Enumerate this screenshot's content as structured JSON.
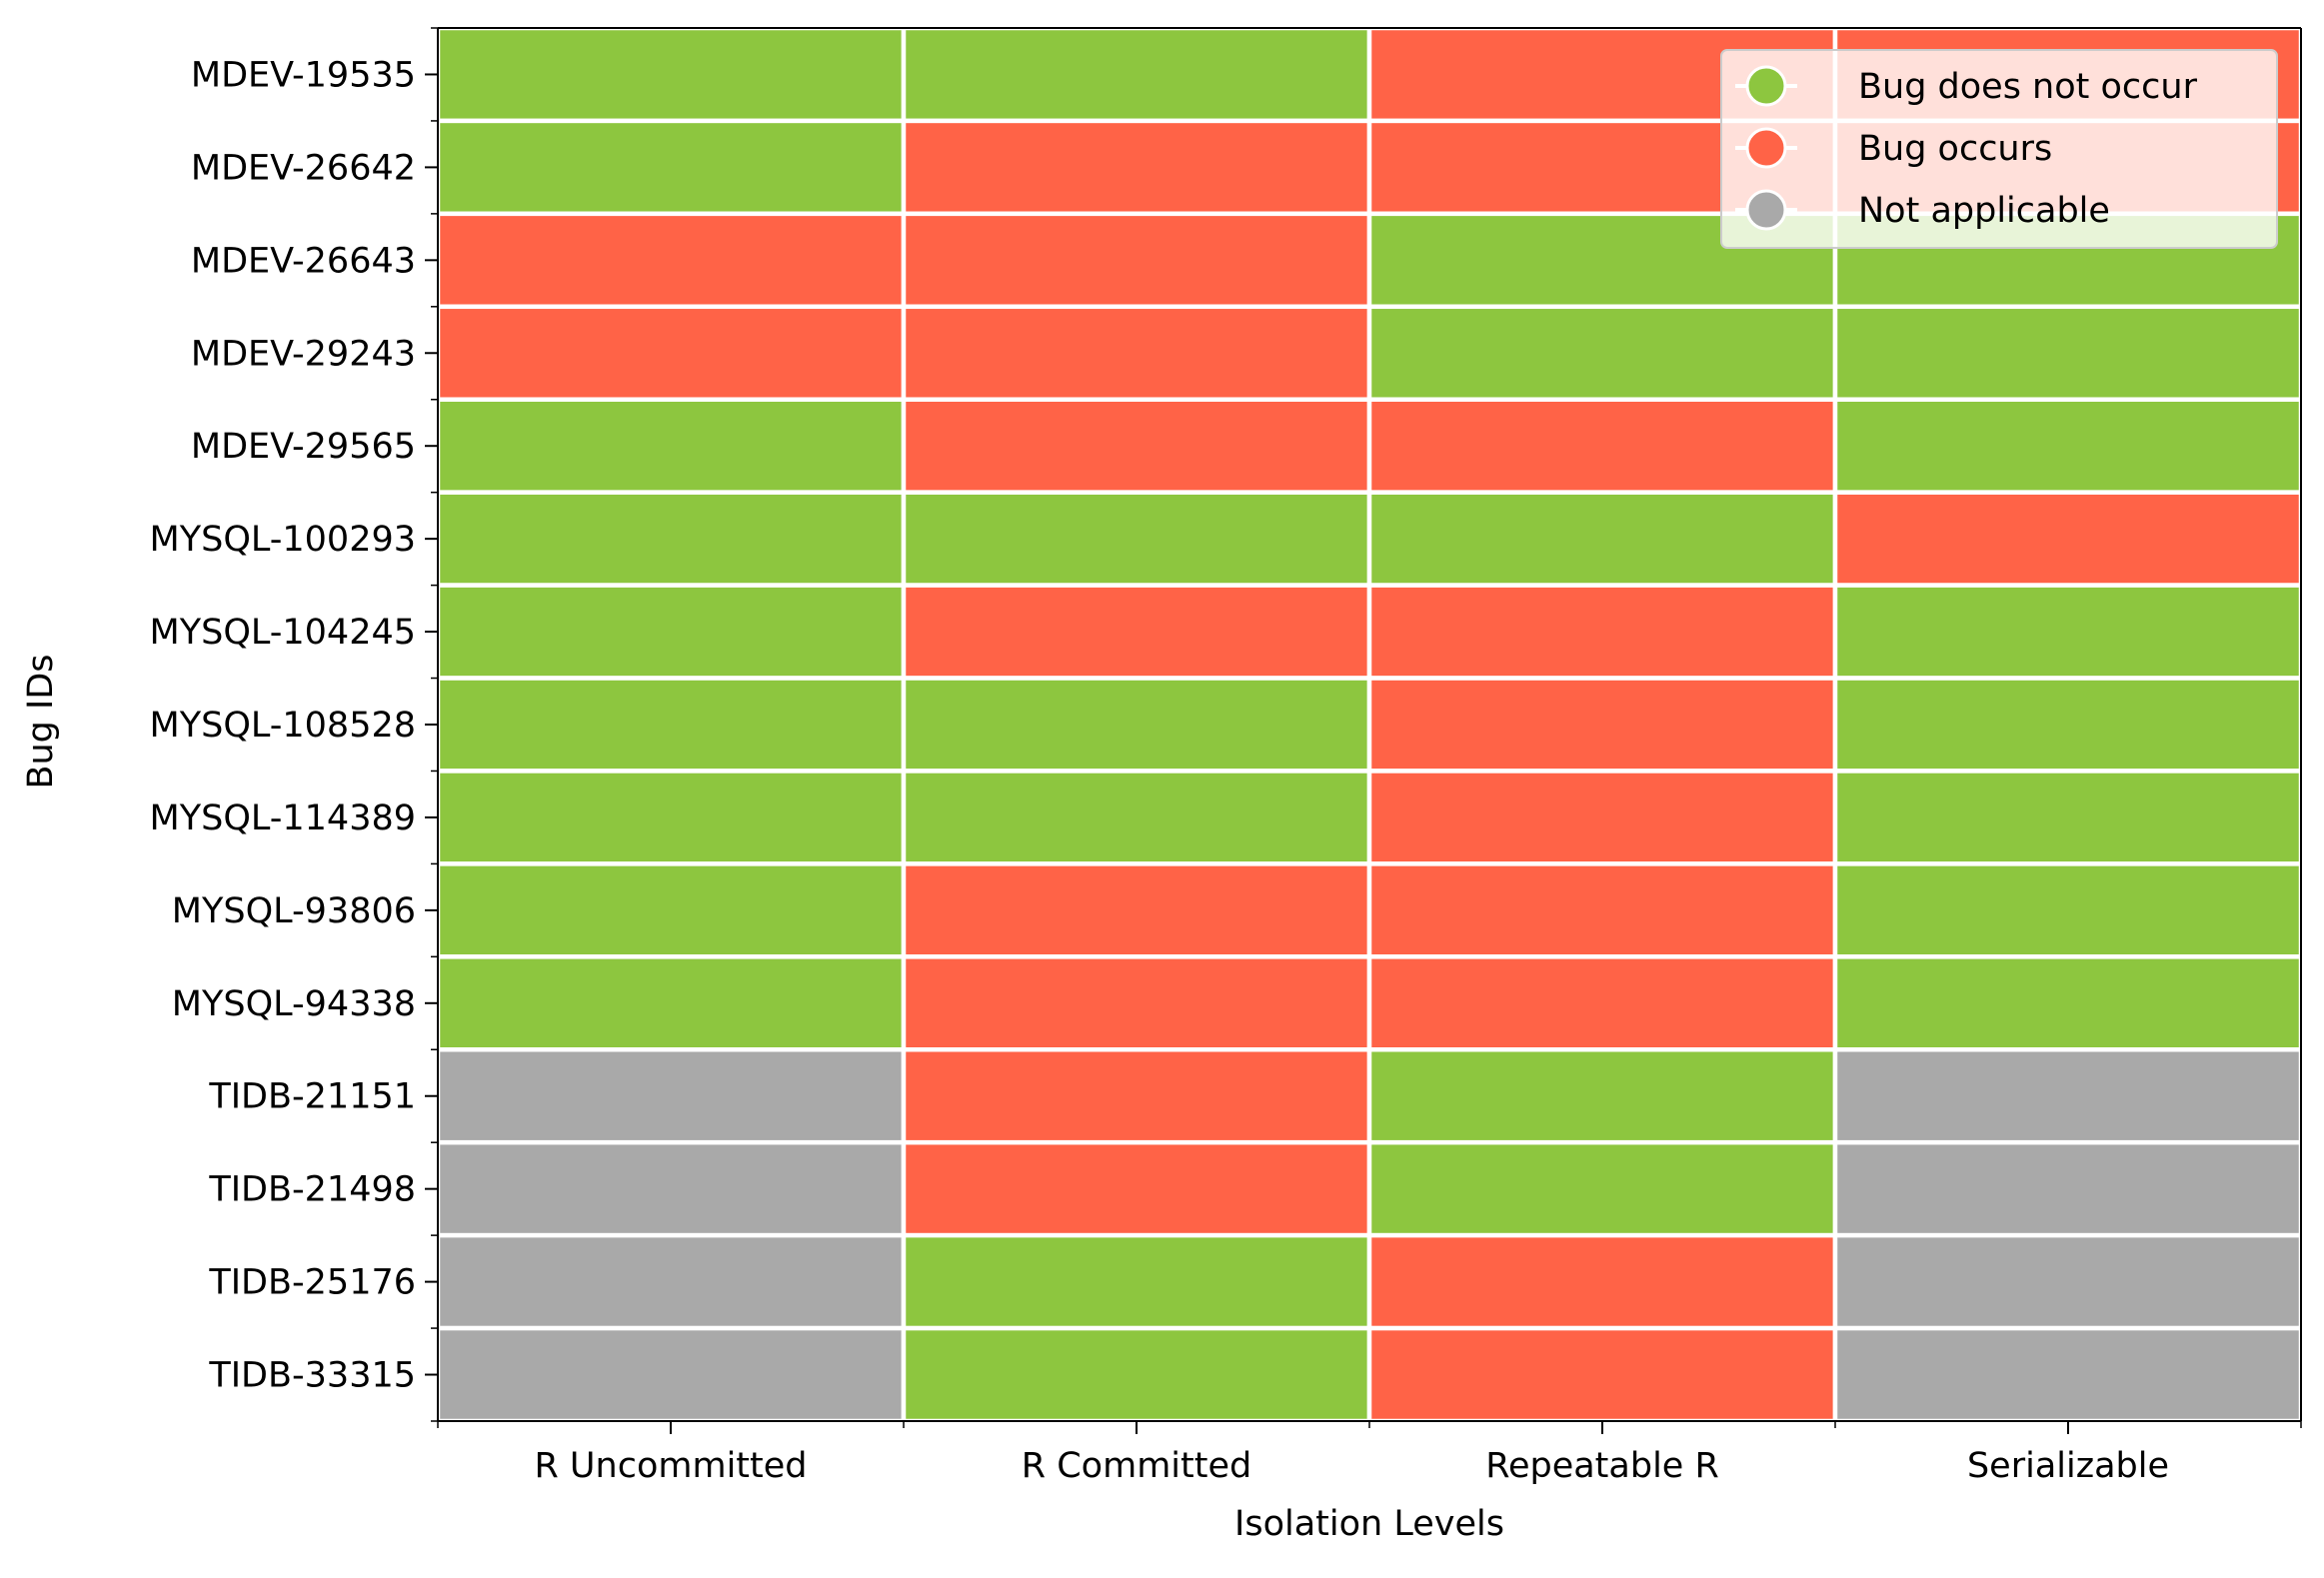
{
  "chart_data": {
    "type": "heatmap",
    "title": "",
    "xlabel": "Isolation Levels",
    "ylabel": "Bug IDs",
    "x_categories": [
      "R Uncommitted",
      "R Committed",
      "Repeatable R",
      "Serializable"
    ],
    "y_categories": [
      "MDEV-19535",
      "MDEV-26642",
      "MDEV-26643",
      "MDEV-29243",
      "MDEV-29565",
      "MYSQL-100293",
      "MYSQL-104245",
      "MYSQL-108528",
      "MYSQL-114389",
      "MYSQL-93806",
      "MYSQL-94338",
      "TIDB-21151",
      "TIDB-21498",
      "TIDB-25176",
      "TIDB-33315"
    ],
    "states": [
      "Bug does not occur",
      "Bug occurs",
      "Not applicable"
    ],
    "state_colors": [
      "#8dc63f",
      "#ff6347",
      "#a9a9a9"
    ],
    "values": [
      [
        0,
        0,
        1,
        1
      ],
      [
        0,
        1,
        1,
        1
      ],
      [
        1,
        1,
        0,
        0
      ],
      [
        1,
        1,
        0,
        0
      ],
      [
        0,
        1,
        1,
        0
      ],
      [
        0,
        0,
        0,
        1
      ],
      [
        0,
        1,
        1,
        0
      ],
      [
        0,
        0,
        1,
        0
      ],
      [
        0,
        0,
        1,
        0
      ],
      [
        0,
        1,
        1,
        0
      ],
      [
        0,
        1,
        1,
        0
      ],
      [
        2,
        1,
        0,
        2
      ],
      [
        2,
        1,
        0,
        2
      ],
      [
        2,
        0,
        1,
        2
      ],
      [
        2,
        0,
        1,
        2
      ]
    ],
    "legend": {
      "position": "top-right",
      "entries": [
        "Bug does not occur",
        "Bug occurs",
        "Not applicable"
      ]
    },
    "grid": false
  }
}
